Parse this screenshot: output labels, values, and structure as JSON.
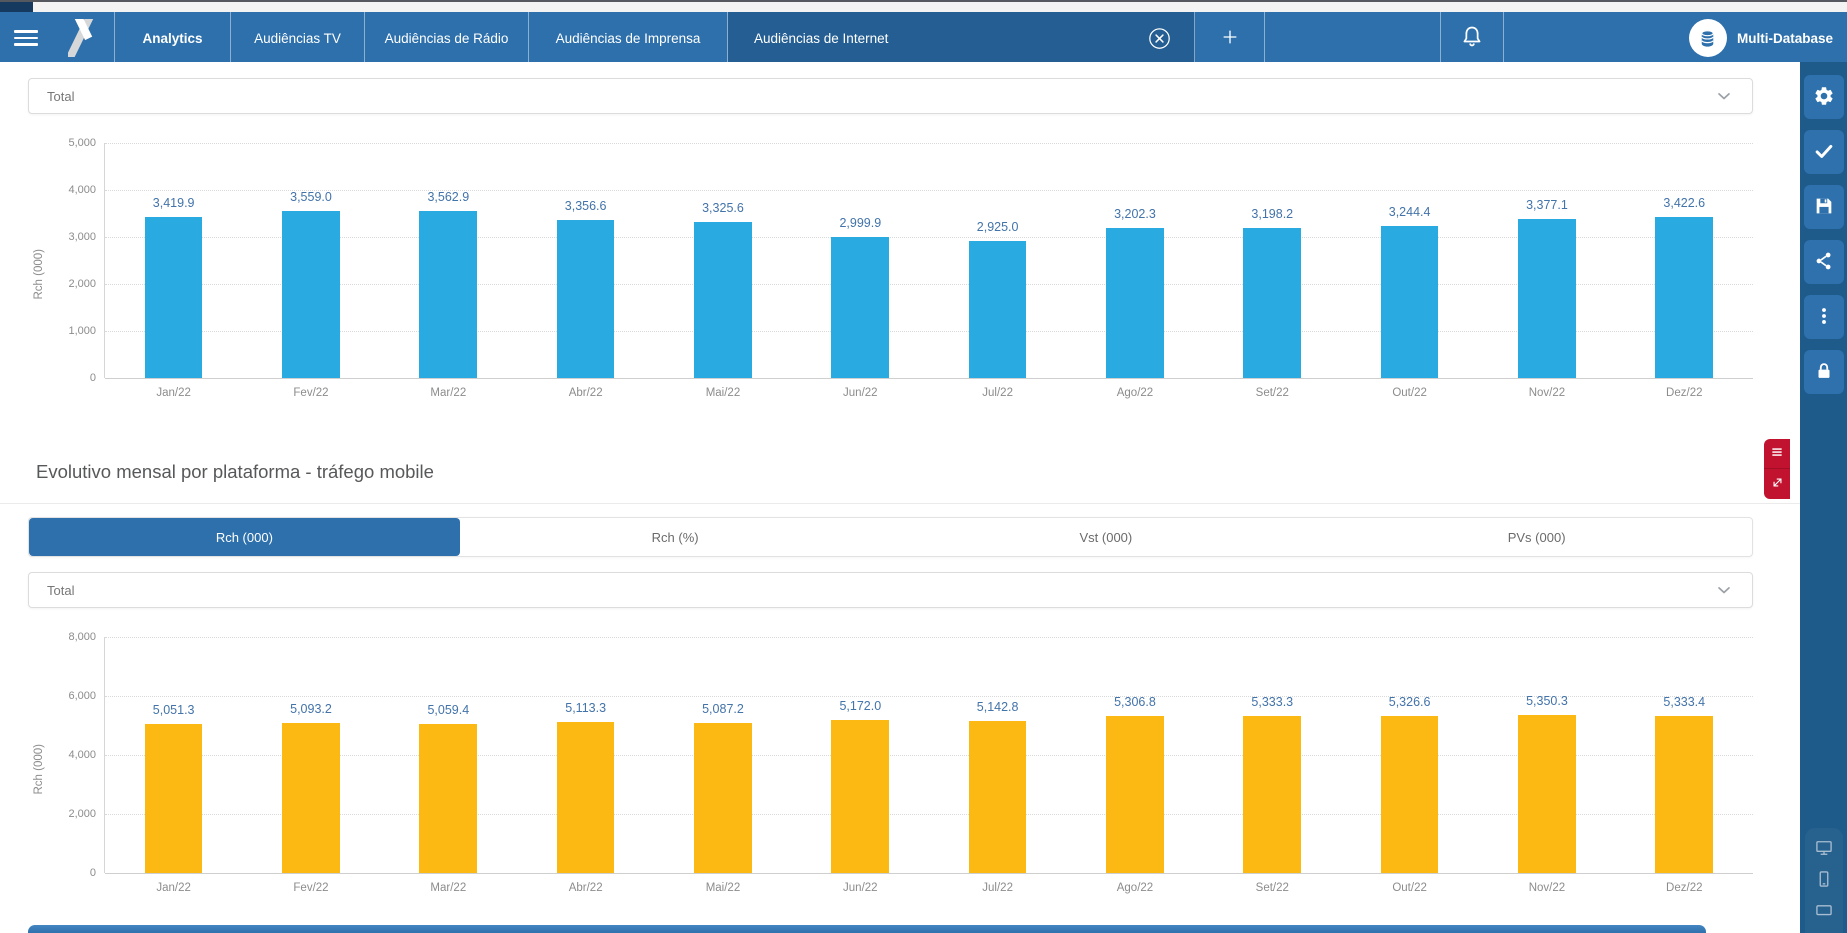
{
  "nav": {
    "logo_icon": "y-logo-icon",
    "hamburger_icon": "menu-icon",
    "tabs": [
      {
        "label": "Analytics",
        "bold": true
      },
      {
        "label": "Audiências TV"
      },
      {
        "label": "Audiências de Rádio"
      },
      {
        "label": "Audiências de Imprensa"
      },
      {
        "label": "Audiências de Internet",
        "active": true,
        "closable": true,
        "close_icon": "close-circle-icon"
      }
    ],
    "add_tab_icon": "plus-icon",
    "bell_icon": "bell-icon",
    "user_icon": "database-icon",
    "user_label": "Multi-Database",
    "bar_color": "#2D70AC",
    "active_tab_color": "#245E93"
  },
  "filters": {
    "total1": "Total",
    "total2": "Total",
    "chevron_icon": "chevron-down-icon"
  },
  "section": {
    "title": "Evolutivo mensal por plataforma - tráfego mobile"
  },
  "metric_tabs": [
    {
      "label": "Rch (000)",
      "active": true
    },
    {
      "label": "Rch (%)"
    },
    {
      "label": "Vst (000)"
    },
    {
      "label": "PVs (000)"
    }
  ],
  "chart_data": [
    {
      "type": "bar",
      "title": "",
      "ylabel": "Rch (000)",
      "xlabel": "",
      "categories": [
        "Jan/22",
        "Fev/22",
        "Mar/22",
        "Abr/22",
        "Mai/22",
        "Jun/22",
        "Jul/22",
        "Ago/22",
        "Set/22",
        "Out/22",
        "Nov/22",
        "Dez/22"
      ],
      "values": [
        3419.9,
        3559.0,
        3562.9,
        3356.6,
        3325.6,
        2999.9,
        2925.0,
        3202.3,
        3198.2,
        3244.4,
        3377.1,
        3422.6
      ],
      "value_labels": [
        "3,419.9",
        "3,559.0",
        "3,562.9",
        "3,356.6",
        "3,325.6",
        "2,999.9",
        "2,925.0",
        "3,202.3",
        "3,198.2",
        "3,244.4",
        "3,377.1",
        "3,422.6"
      ],
      "ylim": [
        0,
        5000
      ],
      "yticks": [
        "5,000",
        "4,000",
        "3,000",
        "2,000",
        "1,000",
        "0"
      ],
      "grid": "dotted-horizontal",
      "legend": false,
      "color": "#29ABE2",
      "label_color": "#4273A9"
    },
    {
      "type": "bar",
      "title": "",
      "ylabel": "Rch (000)",
      "xlabel": "",
      "categories": [
        "Jan/22",
        "Fev/22",
        "Mar/22",
        "Abr/22",
        "Mai/22",
        "Jun/22",
        "Jul/22",
        "Ago/22",
        "Set/22",
        "Out/22",
        "Nov/22",
        "Dez/22"
      ],
      "values": [
        5051.3,
        5093.2,
        5059.4,
        5113.3,
        5087.2,
        5172.0,
        5142.8,
        5306.8,
        5333.3,
        5326.6,
        5350.3,
        5333.4
      ],
      "value_labels": [
        "5,051.3",
        "5,093.2",
        "5,059.4",
        "5,113.3",
        "5,087.2",
        "5,172.0",
        "5,142.8",
        "5,306.8",
        "5,333.3",
        "5,326.6",
        "5,350.3",
        "5,333.4"
      ],
      "ylim": [
        0,
        8000
      ],
      "yticks": [
        "8,000",
        "6,000",
        "4,000",
        "2,000",
        "0"
      ],
      "grid": "dotted-horizontal",
      "legend": false,
      "color": "#FDB913",
      "label_color": "#4273A9"
    }
  ],
  "sidebar": {
    "buttons": [
      {
        "icon": "gear-icon",
        "name": "settings-button"
      },
      {
        "icon": "check-icon",
        "name": "apply-button"
      },
      {
        "icon": "save-icon",
        "name": "save-button"
      },
      {
        "icon": "share-icon",
        "name": "share-button"
      },
      {
        "icon": "more-icon",
        "name": "more-options-button"
      },
      {
        "icon": "lock-icon",
        "name": "lock-button"
      }
    ],
    "devices": [
      {
        "icon": "desktop-icon",
        "name": "desktop-view-button"
      },
      {
        "icon": "mobile-icon",
        "name": "mobile-view-button"
      },
      {
        "icon": "tablet-icon",
        "name": "tablet-view-button"
      }
    ],
    "bg_color": "#1E5A8A",
    "button_color": "#2E71AD"
  },
  "side_actions": [
    {
      "icon": "list-menu-icon",
      "name": "chart-menu-button",
      "color": "#C1122F"
    },
    {
      "icon": "expand-icon",
      "name": "expand-chart-button",
      "color": "#C1122F"
    }
  ]
}
